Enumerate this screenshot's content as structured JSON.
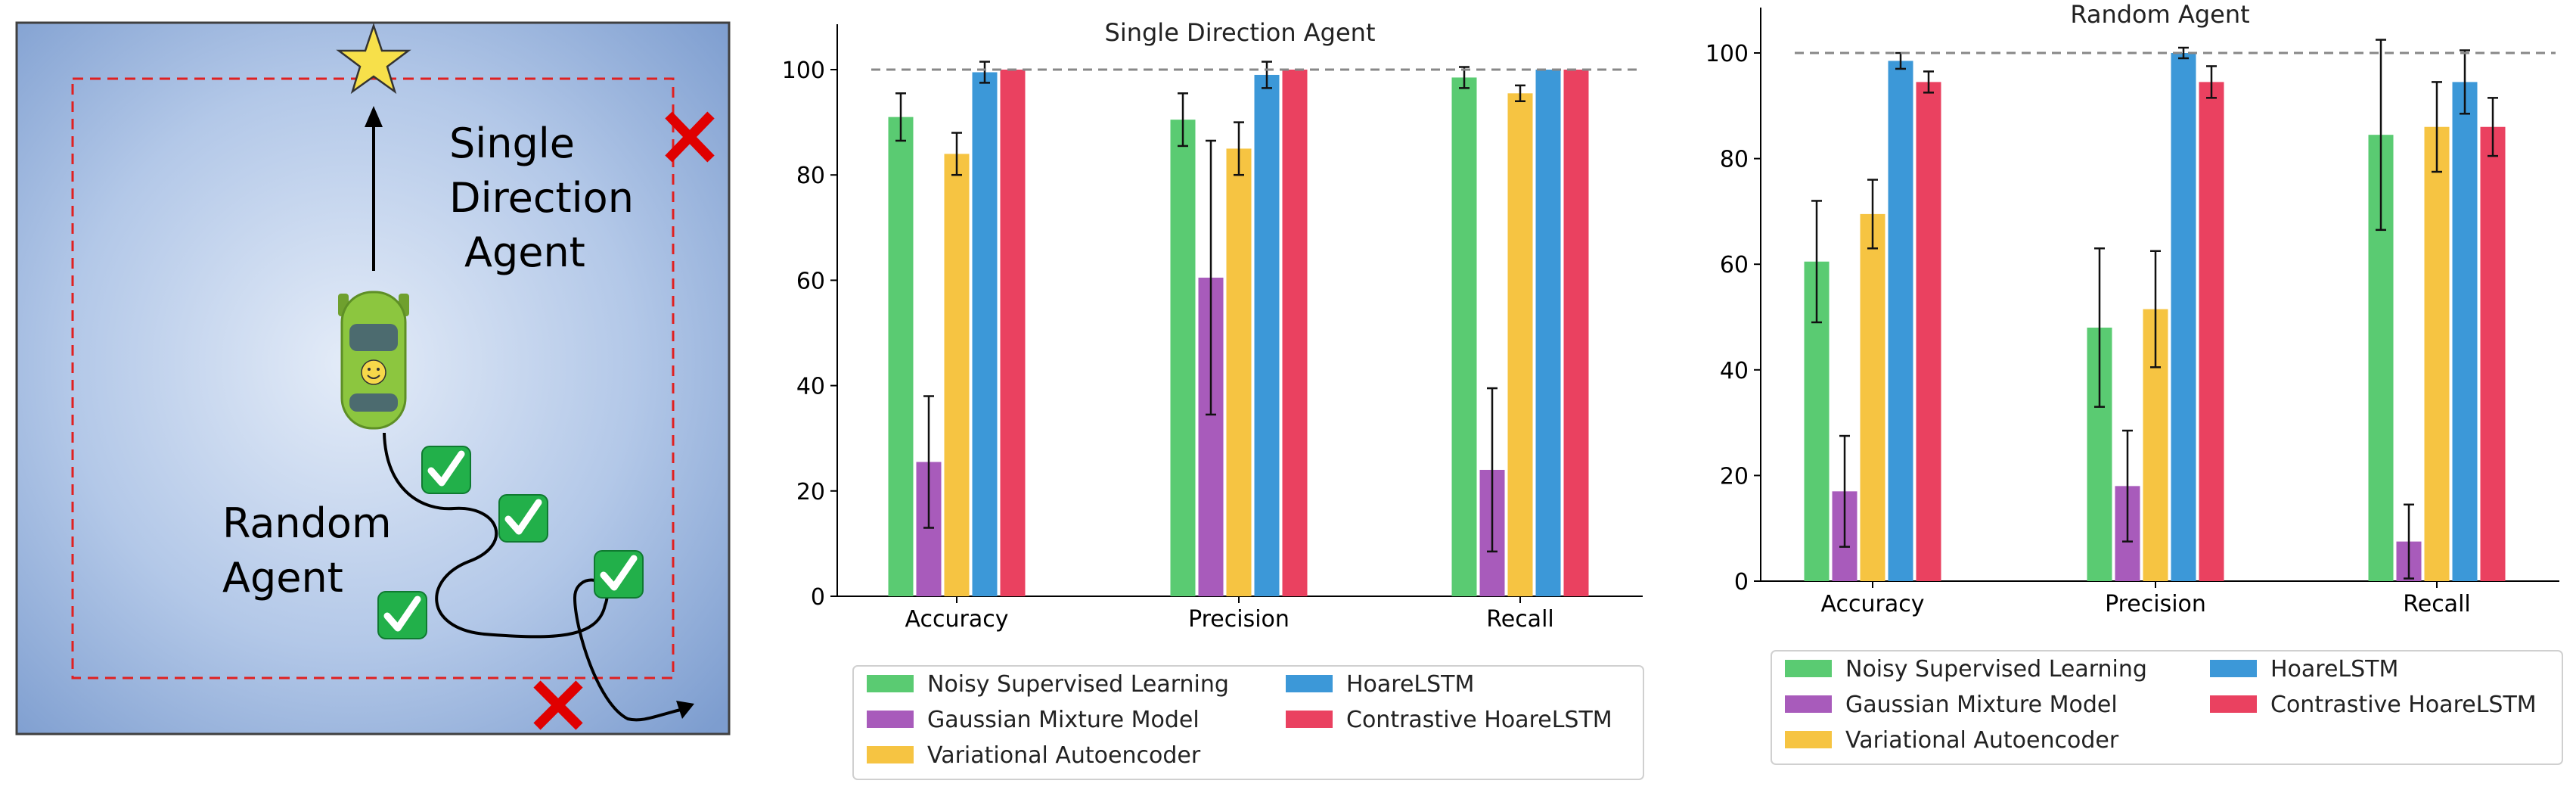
{
  "illustration": {
    "single_label_lines": [
      "Single",
      "Direction",
      "Agent"
    ],
    "random_label_lines": [
      "Random",
      "Agent"
    ],
    "colors": {
      "bg_center": "#dde7f5",
      "bg_edge": "#7f9fcf",
      "boundary": "#e02020",
      "star": "#f7e04a",
      "car": "#8cc63f",
      "check": "#22b04a",
      "cross": "#e00000"
    }
  },
  "legend_entries": [
    {
      "name": "Noisy Supervised Learning",
      "color": "#5acb72"
    },
    {
      "name": "Gaussian Mixture Model",
      "color": "#a85bbb"
    },
    {
      "name": "Variational Autoencoder",
      "color": "#f6c442"
    },
    {
      "name": "HoareLSTM",
      "color": "#3c98d8"
    },
    {
      "name": "Contrastive HoareLSTM",
      "color": "#ea4160"
    }
  ],
  "chart_data": [
    {
      "type": "bar",
      "title": "Single Direction Agent",
      "categories": [
        "Accuracy",
        "Precision",
        "Recall"
      ],
      "ylim": [
        0,
        100
      ],
      "yticks": [
        0,
        20,
        40,
        60,
        80,
        100
      ],
      "reference_line": 100,
      "legend": "bottom",
      "series": [
        {
          "name": "Noisy Supervised Learning",
          "values": [
            91,
            90.5,
            98.5
          ],
          "errors": [
            4.5,
            5,
            2
          ]
        },
        {
          "name": "Gaussian Mixture Model",
          "values": [
            25.5,
            60.5,
            24
          ],
          "errors": [
            12.5,
            26,
            15.5
          ]
        },
        {
          "name": "Variational Autoencoder",
          "values": [
            84,
            85,
            95.5
          ],
          "errors": [
            4,
            5,
            1.5
          ]
        },
        {
          "name": "HoareLSTM",
          "values": [
            99.5,
            99,
            100
          ],
          "errors": [
            2,
            2.5,
            0
          ]
        },
        {
          "name": "Contrastive HoareLSTM",
          "values": [
            100,
            100,
            100
          ],
          "errors": [
            0,
            0,
            0
          ]
        }
      ]
    },
    {
      "type": "bar",
      "title": "Random Agent",
      "categories": [
        "Accuracy",
        "Precision",
        "Recall"
      ],
      "ylim": [
        0,
        100
      ],
      "yticks": [
        0,
        20,
        40,
        60,
        80,
        100
      ],
      "reference_line": 100,
      "legend": "bottom",
      "series": [
        {
          "name": "Noisy Supervised Learning",
          "values": [
            60.5,
            48,
            84.5
          ],
          "errors": [
            11.5,
            15,
            18
          ]
        },
        {
          "name": "Gaussian Mixture Model",
          "values": [
            17,
            18,
            7.5
          ],
          "errors": [
            10.5,
            10.5,
            7
          ]
        },
        {
          "name": "Variational Autoencoder",
          "values": [
            69.5,
            51.5,
            86
          ],
          "errors": [
            6.5,
            11,
            8.5
          ]
        },
        {
          "name": "HoareLSTM",
          "values": [
            98.5,
            100,
            94.5
          ],
          "errors": [
            1.5,
            1,
            6
          ]
        },
        {
          "name": "Contrastive HoareLSTM",
          "values": [
            94.5,
            94.5,
            86
          ],
          "errors": [
            2,
            3,
            5.5
          ]
        }
      ]
    }
  ]
}
